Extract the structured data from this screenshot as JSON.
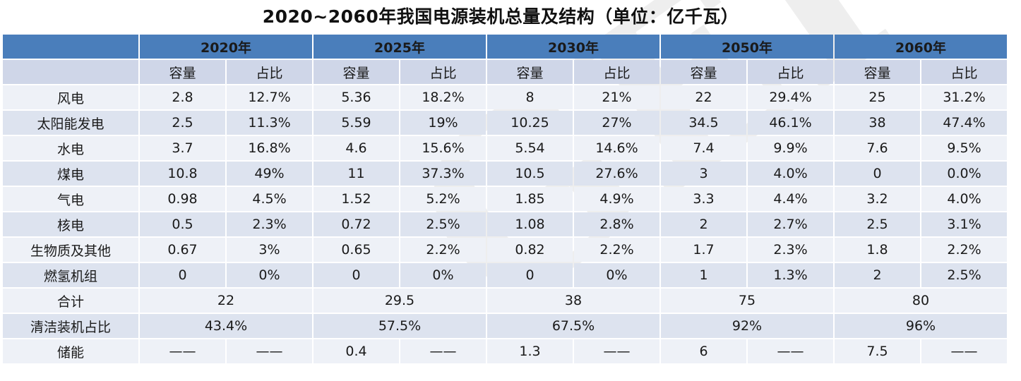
{
  "title": "2020~2060年我国电源装机总量及结构（单位：亿千瓦）",
  "watermark": "GEI",
  "years": [
    "2020年",
    "2025年",
    "2030年",
    "2050年",
    "2060年"
  ],
  "sub_headers": {
    "capacity": "容量",
    "share": "占比"
  },
  "rows": [
    {
      "label": "风电",
      "cells": [
        "2.8",
        "12.7%",
        "5.36",
        "18.2%",
        "8",
        "21%",
        "22",
        "29.4%",
        "25",
        "31.2%"
      ]
    },
    {
      "label": "太阳能发电",
      "cells": [
        "2.5",
        "11.3%",
        "5.59",
        "19%",
        "10.25",
        "27%",
        "34.5",
        "46.1%",
        "38",
        "47.4%"
      ]
    },
    {
      "label": "水电",
      "cells": [
        "3.7",
        "16.8%",
        "4.6",
        "15.6%",
        "5.54",
        "14.6%",
        "7.4",
        "9.9%",
        "7.6",
        "9.5%"
      ]
    },
    {
      "label": "煤电",
      "cells": [
        "10.8",
        "49%",
        "11",
        "37.3%",
        "10.5",
        "27.6%",
        "3",
        "4.0%",
        "0",
        "0.0%"
      ]
    },
    {
      "label": "气电",
      "cells": [
        "0.98",
        "4.5%",
        "1.52",
        "5.2%",
        "1.85",
        "4.9%",
        "3.3",
        "4.4%",
        "3.2",
        "4.0%"
      ]
    },
    {
      "label": "核电",
      "cells": [
        "0.5",
        "2.3%",
        "0.72",
        "2.5%",
        "1.08",
        "2.8%",
        "2",
        "2.7%",
        "2.5",
        "3.1%"
      ]
    },
    {
      "label": "生物质及其他",
      "cells": [
        "0.67",
        "3%",
        "0.65",
        "2.2%",
        "0.82",
        "2.2%",
        "1.7",
        "2.3%",
        "1.8",
        "2.2%"
      ]
    },
    {
      "label": "燃氢机组",
      "cells": [
        "0",
        "0%",
        "0",
        "0%",
        "0",
        "0%",
        "1",
        "1.3%",
        "2",
        "2.5%"
      ]
    }
  ],
  "total": {
    "label": "合计",
    "values": [
      "22",
      "29.5",
      "38",
      "75",
      "80"
    ]
  },
  "clean_share": {
    "label": "清洁装机占比",
    "values": [
      "43.4%",
      "57.5%",
      "67.5%",
      "92%",
      "96%"
    ]
  },
  "storage": {
    "label": "储能",
    "cells": [
      "——",
      "——",
      "0.4",
      "——",
      "1.3",
      "——",
      "6",
      "——",
      "7.5",
      "——"
    ]
  }
}
